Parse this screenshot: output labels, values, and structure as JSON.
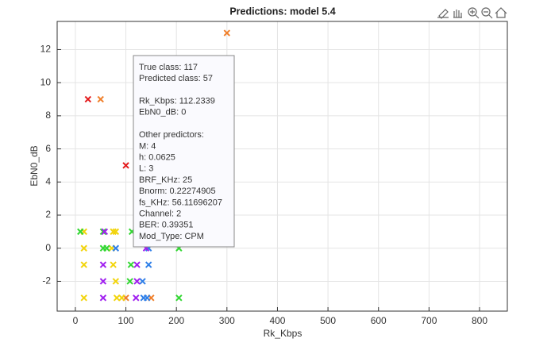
{
  "chart_data": {
    "type": "scatter",
    "title": "Predictions: model 5.4",
    "xlabel": "Rk_Kbps",
    "ylabel": "EbN0_dB",
    "xlim": [
      -36,
      855
    ],
    "ylim": [
      -3.8,
      13.7
    ],
    "xticks": [
      0,
      100,
      200,
      300,
      400,
      500,
      600,
      700,
      800
    ],
    "yticks": [
      -2,
      0,
      2,
      4,
      6,
      8,
      10,
      12
    ],
    "grid": true,
    "marker": "x",
    "series": [
      {
        "color": "#e41a1c",
        "x": [
          25,
          100
        ],
        "values": [
          9,
          5
        ]
      },
      {
        "color": "#f07f2a",
        "x": [
          300,
          50,
          100,
          150
        ],
        "values": [
          13,
          9,
          -3,
          -3
        ]
      },
      {
        "color": "#f2d40c",
        "x": [
          17,
          75,
          80,
          17,
          72,
          17,
          75,
          80,
          17,
          82,
          92
        ],
        "values": [
          1,
          1,
          1,
          0,
          0,
          -1,
          -1,
          -2,
          -3,
          -3,
          -3
        ]
      },
      {
        "color": "#32d732",
        "x": [
          10,
          55,
          112,
          55,
          62,
          205,
          110,
          108,
          205
        ],
        "values": [
          1,
          1,
          1,
          0,
          0,
          0,
          -1,
          -2,
          -3
        ]
      },
      {
        "color": "#2f7fe8",
        "x": [
          80,
          145,
          145,
          133,
          135,
          142
        ],
        "values": [
          0,
          0,
          -1,
          -2,
          -3,
          -3
        ]
      },
      {
        "color": "#a020f0",
        "x": [
          58,
          140,
          55,
          122,
          55,
          122,
          55,
          120
        ],
        "values": [
          1,
          0,
          -1,
          -1,
          -2,
          -2,
          -3,
          -3
        ]
      }
    ],
    "datatip": [
      [
        "True class: 117",
        "Predicted class: 57"
      ],
      [
        "Rk_Kbps: 112.2339",
        "EbN0_dB: 0"
      ],
      [
        "Other predictors:",
        "M: 4",
        "h: 0.0625",
        "L: 3",
        "BRF_KHz: 25",
        "Bnorm: 0.22274905",
        "fs_KHz: 56.11696207",
        "Channel: 2",
        "BER: 0.39351",
        "Mod_Type: CPM"
      ]
    ]
  }
}
